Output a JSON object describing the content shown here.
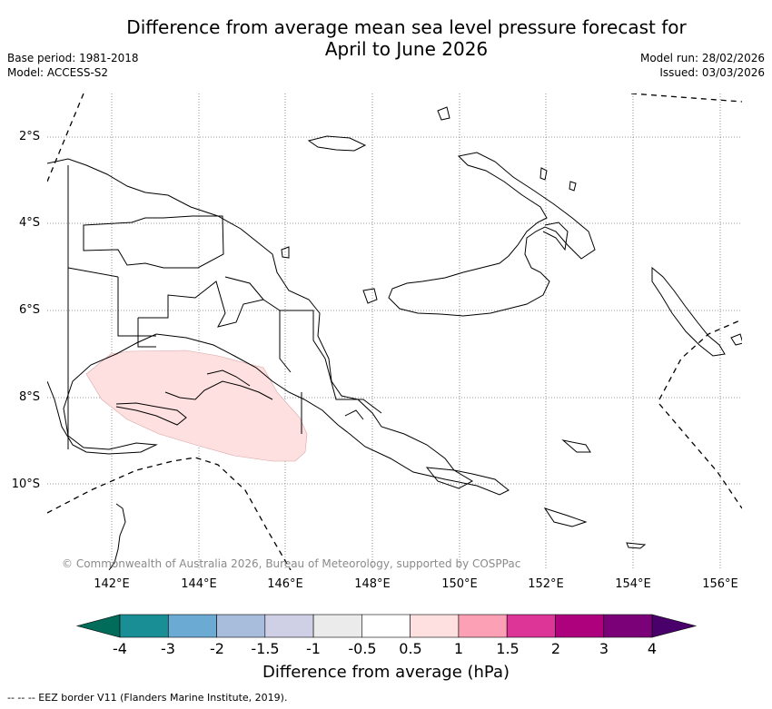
{
  "title": {
    "line1": "Difference from average mean sea level pressure forecast for",
    "line2": "April to June 2026"
  },
  "meta": {
    "base_period": "Base period: 1981-2018",
    "model": "Model: ACCESS-S2",
    "model_run": "Model run: 28/02/2026",
    "issued": "Issued: 03/03/2026"
  },
  "axes": {
    "lat_labels": [
      "2°S",
      "4°S",
      "6°S",
      "8°S",
      "10°S"
    ],
    "lon_labels": [
      "142°E",
      "144°E",
      "146°E",
      "148°E",
      "150°E",
      "152°E",
      "154°E",
      "156°E"
    ]
  },
  "copyright": "© Commonwealth of Australia 2026, Bureau of Meteorology, supported by COSPPac",
  "anomaly_region": {
    "value_range_hPa": "0.5 to 1",
    "color": "#fde0df"
  },
  "colorbar": {
    "label": "Difference from average (hPa)",
    "ticks": [
      "-4",
      "-3",
      "-2",
      "-1.5",
      "-1",
      "-0.5",
      "0.5",
      "1",
      "1.5",
      "2",
      "3",
      "4"
    ],
    "colors": [
      "#1a8e95",
      "#6baad3",
      "#a8bcdb",
      "#cfd0e6",
      "#ebebeb",
      "#ffffff",
      "#fde0df",
      "#fba0b5",
      "#dd3497",
      "#ae017e",
      "#7a0177"
    ],
    "under_color": "#016c59",
    "over_color": "#49006a"
  },
  "footnote": "--  --  -- EEZ border V11 (Flanders Marine Institute, 2019)."
}
